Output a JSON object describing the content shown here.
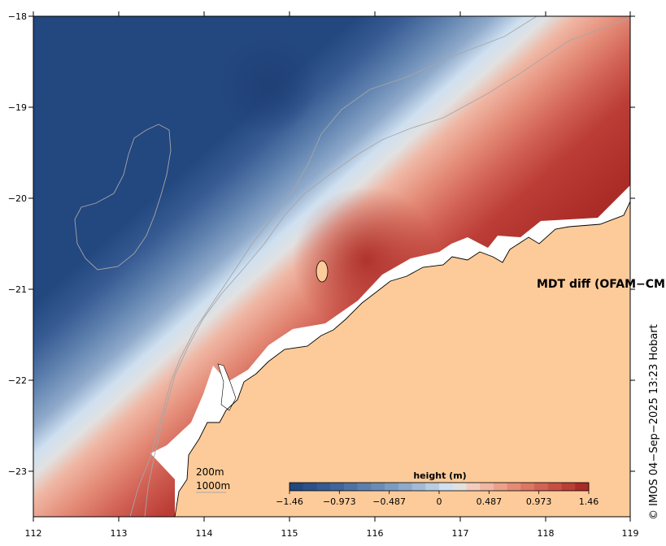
{
  "map": {
    "title": "MDT diff (OFAM−CME",
    "credit": "© IMOS 04−Sep−2025 13:23 Hobart",
    "x_tick_labels": [
      "112",
      "113",
      "114",
      "115",
      "116",
      "117",
      "118",
      "119"
    ],
    "y_tick_labels": [
      "−18",
      "−19",
      "−20",
      "−21",
      "−22",
      "−23"
    ],
    "lon_range": [
      112,
      119
    ],
    "lat_range": [
      -23.5,
      -18
    ],
    "isobath_labels": [
      "200m",
      "1000m"
    ],
    "land_color": "#fdcb99",
    "coastline_color": "#000000",
    "isobath_color": "#a6a6a6"
  },
  "colorbar": {
    "title": "height (m)",
    "tick_labels": [
      "−1.46",
      "−0.973",
      "−0.487",
      "0",
      "0.487",
      "0.973",
      "1.46"
    ],
    "range": [
      -1.46,
      1.46
    ],
    "colors": [
      "#23477f",
      "#2c5089",
      "#365a92",
      "#41659a",
      "#4e72a3",
      "#5c7fad",
      "#6b8cb6",
      "#7c9bc0",
      "#8ea9ca",
      "#a2bad5",
      "#b8cde2",
      "#cfe0f0",
      "#e1e1e1",
      "#f2cdbf",
      "#efb7a4",
      "#eaa18c",
      "#e48b77",
      "#dc7665",
      "#d26255",
      "#c84f45",
      "#bb3d36",
      "#ab2b27"
    ]
  }
}
